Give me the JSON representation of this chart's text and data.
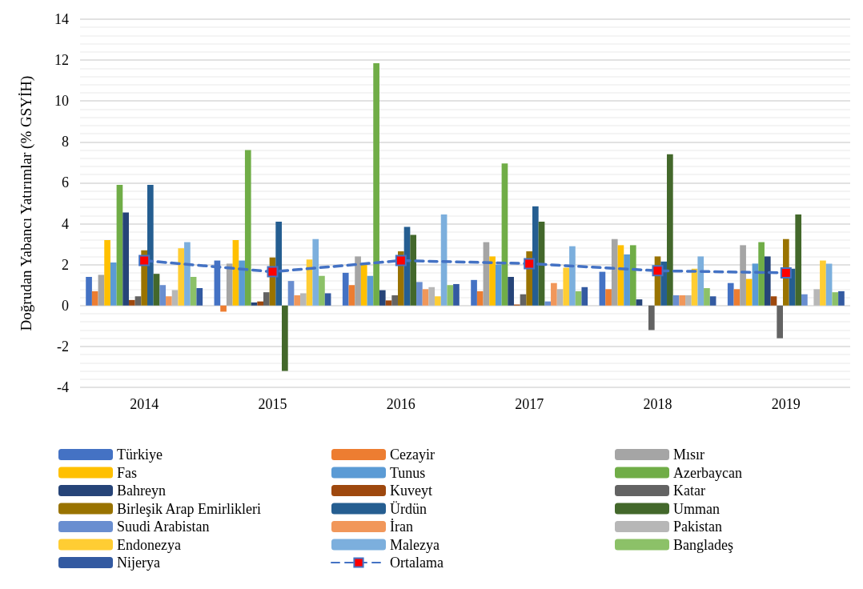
{
  "chart_data": {
    "type": "bar",
    "ylabel": "Doğrudan Yabancı Yatırımlar (% GSYİH)",
    "categories": [
      "2014",
      "2015",
      "2016",
      "2017",
      "2018",
      "2019"
    ],
    "ylim": [
      -4,
      14
    ],
    "yticks": [
      -4,
      -2,
      0,
      2,
      4,
      6,
      8,
      10,
      12,
      14
    ],
    "grid": "y",
    "legend": "bottom",
    "series": [
      {
        "name": "Türkiye",
        "color": "#4472c4",
        "values": [
          1.4,
          2.2,
          1.6,
          1.25,
          1.65,
          1.1
        ]
      },
      {
        "name": "Cezayir",
        "color": "#ed7d31",
        "values": [
          0.7,
          -0.3,
          1.0,
          0.7,
          0.8,
          0.8
        ]
      },
      {
        "name": "Mısır",
        "color": "#a5a5a5",
        "values": [
          1.5,
          2.05,
          2.4,
          3.1,
          3.25,
          2.95
        ]
      },
      {
        "name": "Fas",
        "color": "#ffc000",
        "values": [
          3.2,
          3.2,
          2.05,
          2.4,
          2.95,
          1.3
        ]
      },
      {
        "name": "Tunus",
        "color": "#5b9bd5",
        "values": [
          2.1,
          2.2,
          1.45,
          2.0,
          2.5,
          2.05
        ]
      },
      {
        "name": "Azerbaycan",
        "color": "#70ad47",
        "values": [
          5.9,
          7.6,
          11.85,
          6.95,
          2.95,
          3.1
        ]
      },
      {
        "name": "Bahreyn",
        "color": "#264478",
        "values": [
          4.55,
          0.15,
          0.75,
          1.4,
          0.3,
          2.4
        ]
      },
      {
        "name": "Kuveyt",
        "color": "#9e480e",
        "values": [
          0.27,
          0.2,
          0.25,
          0.05,
          null,
          0.45
        ]
      },
      {
        "name": "Katar",
        "color": "#636363",
        "values": [
          0.45,
          0.65,
          0.5,
          0.55,
          -1.2,
          -1.6
        ]
      },
      {
        "name": "Birleşik Arap Emirlikleri",
        "color": "#997300",
        "values": [
          2.7,
          2.35,
          2.65,
          2.65,
          2.4,
          3.25
        ]
      },
      {
        "name": "Ürdün",
        "color": "#255e91",
        "values": [
          5.9,
          4.1,
          3.85,
          4.85,
          2.15,
          1.8
        ]
      },
      {
        "name": "Umman",
        "color": "#43682b",
        "values": [
          1.55,
          -3.2,
          3.45,
          4.1,
          7.4,
          4.45
        ]
      },
      {
        "name": "Suudi Arabistan",
        "color": "#698ed0",
        "values": [
          1.0,
          1.2,
          1.15,
          0.2,
          0.5,
          0.55
        ]
      },
      {
        "name": "İran",
        "color": "#f1975a",
        "values": [
          0.45,
          0.5,
          0.8,
          1.1,
          0.5,
          null
        ]
      },
      {
        "name": "Pakistan",
        "color": "#b7b7b7",
        "values": [
          0.75,
          0.6,
          0.9,
          0.8,
          0.5,
          0.8
        ]
      },
      {
        "name": "Endonezya",
        "color": "#ffcd33",
        "values": [
          2.8,
          2.25,
          0.45,
          1.85,
          1.8,
          2.2
        ]
      },
      {
        "name": "Malezya",
        "color": "#7cafdd",
        "values": [
          3.1,
          3.25,
          4.45,
          2.9,
          2.4,
          2.05
        ]
      },
      {
        "name": "Bangladeş",
        "color": "#8cc168",
        "values": [
          1.4,
          1.45,
          1.0,
          0.7,
          0.85,
          0.65
        ]
      },
      {
        "name": "Nijerya",
        "color": "#335aa1",
        "values": [
          0.85,
          0.6,
          1.05,
          0.9,
          0.45,
          0.7
        ]
      },
      {
        "name": "Ortalama",
        "type": "line",
        "color": "#4472c4",
        "marker": "square",
        "line_style": "dashed",
        "values": [
          2.2,
          1.65,
          2.2,
          2.05,
          1.7,
          1.6
        ]
      }
    ]
  }
}
